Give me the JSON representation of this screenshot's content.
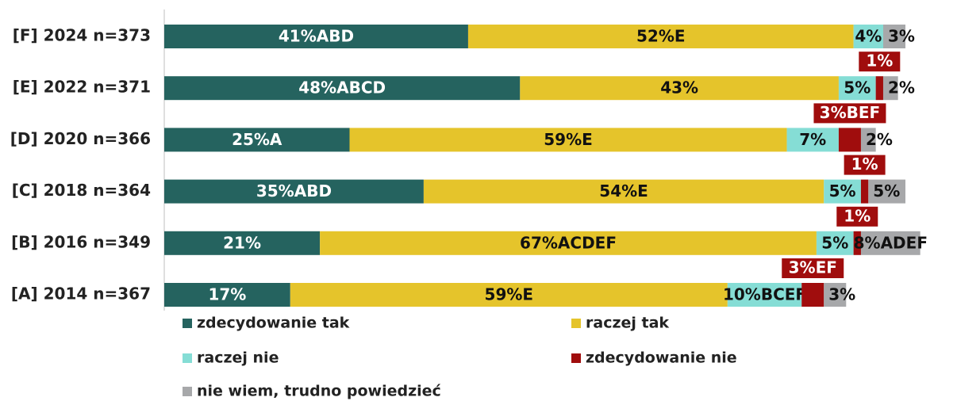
{
  "chart_data": {
    "type": "stacked-bar-horizontal",
    "categories": [
      "[F] 2024 n=373",
      "[E] 2022 n=371",
      "[D] 2020 n=366",
      "[C] 2018 n=364",
      "[B] 2016 n=349",
      "[A] 2014 n=367"
    ],
    "series": [
      {
        "name": "zdecydowanie tak",
        "color": "#25635f",
        "values": [
          41,
          48,
          25,
          35,
          21,
          17
        ],
        "value_labels": [
          "41%ABD",
          "48%ABCD",
          "25%A",
          "35%ABD",
          "21%",
          "17%"
        ]
      },
      {
        "name": "raczej tak",
        "color": "#e5c42b",
        "values": [
          52,
          43,
          59,
          54,
          67,
          59
        ],
        "value_labels": [
          "52%E",
          "43%",
          "59%E",
          "54%E",
          "67%ACDEF",
          "59%E"
        ]
      },
      {
        "name": "raczej nie",
        "color": "#85ddd5",
        "values": [
          4,
          5,
          7,
          5,
          5,
          10
        ],
        "value_labels": [
          "4%",
          "5%",
          "7%",
          "5%",
          "5%",
          "10%BCEF"
        ]
      },
      {
        "name": "zdecydowanie nie",
        "color": "#a00d0d",
        "values": [
          0,
          1,
          3,
          1,
          1,
          3
        ],
        "value_labels": [
          null,
          "1%",
          "3%BEF",
          "1%",
          "1%",
          "3%EF"
        ]
      },
      {
        "name": "nie wiem, trudno powiedzieć",
        "color": "#a7a8aa",
        "values": [
          3,
          2,
          2,
          5,
          8,
          3
        ],
        "value_labels": [
          "3%",
          "2%",
          "2%",
          "5%",
          "8%ADEF",
          "3%"
        ]
      }
    ],
    "xlim": [
      0,
      100
    ]
  }
}
